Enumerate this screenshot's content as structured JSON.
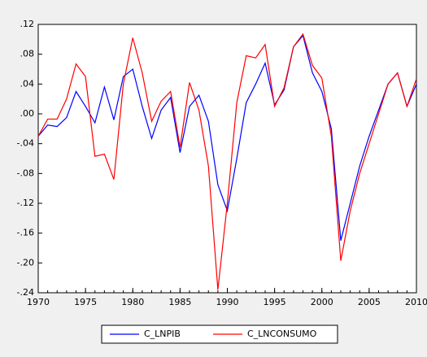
{
  "chart_data": {
    "type": "line",
    "x": [
      1970,
      1971,
      1972,
      1973,
      1974,
      1975,
      1976,
      1977,
      1978,
      1979,
      1980,
      1981,
      1982,
      1983,
      1984,
      1985,
      1986,
      1987,
      1988,
      1989,
      1990,
      1991,
      1992,
      1993,
      1994,
      1995,
      1996,
      1997,
      1998,
      1999,
      2000,
      2001,
      2002,
      2003,
      2004,
      2005,
      2006,
      2007,
      2008,
      2009,
      2010
    ],
    "series": [
      {
        "name": "C_LNPIB",
        "color": "#0000ff",
        "values": [
          -0.03,
          -0.015,
          -0.017,
          -0.005,
          0.03,
          0.01,
          -0.012,
          0.036,
          -0.008,
          0.05,
          0.06,
          0.01,
          -0.033,
          0.005,
          0.022,
          -0.052,
          0.01,
          0.025,
          -0.01,
          -0.095,
          -0.13,
          -0.06,
          0.015,
          0.04,
          0.068,
          0.012,
          0.032,
          0.09,
          0.105,
          0.055,
          0.03,
          -0.02,
          -0.17,
          -0.12,
          -0.07,
          -0.03,
          0.005,
          0.04,
          0.055,
          0.01,
          0.04
        ]
      },
      {
        "name": "C_LNCONSUMO",
        "color": "#ff0000",
        "values": [
          -0.03,
          -0.007,
          -0.007,
          0.02,
          0.067,
          0.05,
          -0.057,
          -0.054,
          -0.088,
          0.04,
          0.102,
          0.055,
          -0.01,
          0.017,
          0.03,
          -0.045,
          0.042,
          0.005,
          -0.07,
          -0.236,
          -0.12,
          0.015,
          0.078,
          0.075,
          0.093,
          0.01,
          0.035,
          0.09,
          0.107,
          0.065,
          0.048,
          -0.03,
          -0.197,
          -0.13,
          -0.08,
          -0.04,
          0.0,
          0.04,
          0.055,
          0.01,
          0.047
        ]
      }
    ],
    "xlim": [
      1970,
      2010
    ],
    "xticks": [
      1970,
      1975,
      1980,
      1985,
      1990,
      1995,
      2000,
      2005,
      2010
    ],
    "ylim": [
      -0.24,
      0.12
    ],
    "yticks": [
      {
        "value": 0.12,
        "label": ".12"
      },
      {
        "value": 0.08,
        "label": ".08"
      },
      {
        "value": 0.04,
        "label": ".04"
      },
      {
        "value": 0.0,
        "label": ".00"
      },
      {
        "value": -0.04,
        "label": "-.04"
      },
      {
        "value": -0.08,
        "label": "-.08"
      },
      {
        "value": -0.12,
        "label": "-.12"
      },
      {
        "value": -0.16,
        "label": "-.16"
      },
      {
        "value": -0.2,
        "label": "-.20"
      },
      {
        "value": -0.24,
        "label": "-.24"
      }
    ],
    "grid": false
  }
}
